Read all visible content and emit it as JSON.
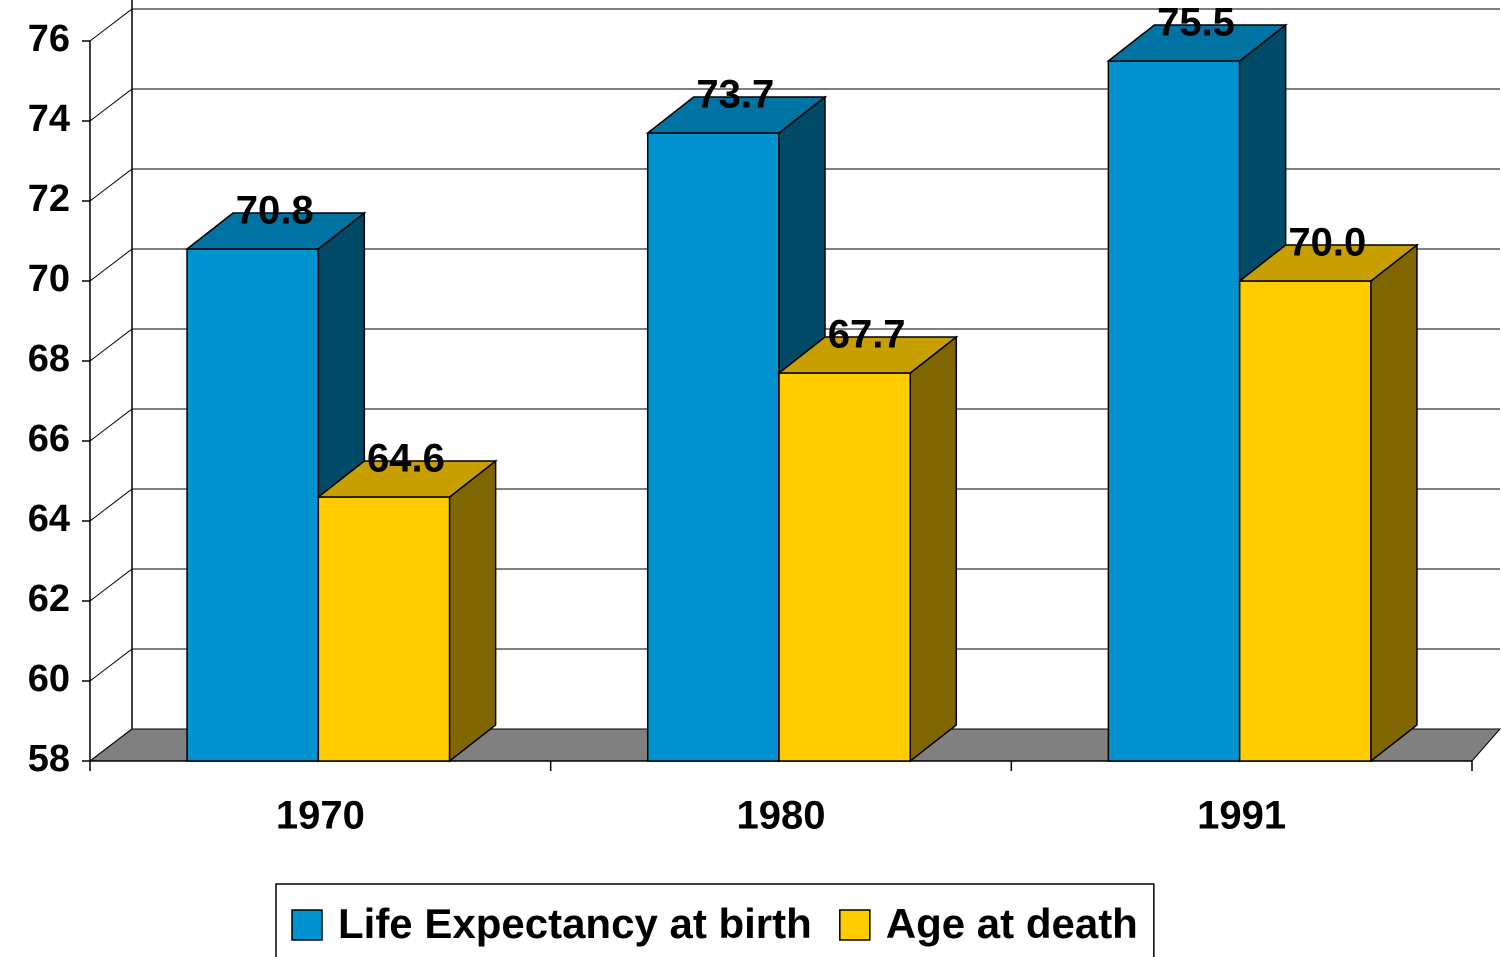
{
  "chart_data": {
    "type": "bar3d",
    "categories": [
      "1970",
      "1980",
      "1991"
    ],
    "series": [
      {
        "name": "Life Expectancy at birth",
        "color": "#0093d0",
        "values": [
          70.8,
          73.7,
          75.5
        ]
      },
      {
        "name": "Age at death",
        "color": "#ffcc00",
        "values": [
          64.6,
          67.7,
          70.0
        ],
        "value_labels": [
          "64.6",
          "67.7",
          "70.0"
        ]
      }
    ],
    "ylim": [
      58,
      76
    ],
    "yticks": [
      58,
      60,
      62,
      64,
      66,
      68,
      70,
      72,
      74,
      76
    ],
    "grid": true,
    "legend": "bottom"
  }
}
